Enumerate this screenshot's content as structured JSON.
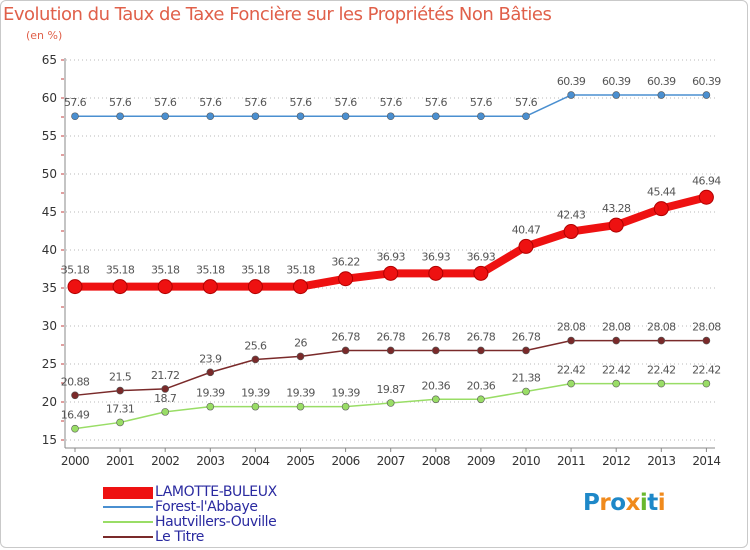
{
  "header": {
    "title": "Evolution du Taux de Taxe Foncière sur les Propriétés Non Bâties",
    "unit": "(en %)"
  },
  "chart_data": {
    "type": "line",
    "title": "Evolution du Taux de Taxe Foncière sur les Propriétés Non Bâties",
    "ylabel": "(en %)",
    "xlabel": "",
    "x": [
      "2000",
      "2001",
      "2002",
      "2003",
      "2004",
      "2005",
      "2006",
      "2007",
      "2008",
      "2009",
      "2010",
      "2011",
      "2012",
      "2013",
      "2014"
    ],
    "ylim": [
      15,
      65
    ],
    "yticks": [
      15,
      20,
      25,
      30,
      35,
      40,
      45,
      50,
      55,
      60,
      65
    ],
    "grid": true,
    "legend_position": "bottom-left",
    "series": [
      {
        "name": "Forest-l'Abbaye",
        "color": "#4a8fd0",
        "values": [
          57.6,
          57.6,
          57.6,
          57.6,
          57.6,
          57.6,
          57.6,
          57.6,
          57.6,
          57.6,
          57.6,
          60.39,
          60.39,
          60.39,
          60.39
        ],
        "labels": [
          "57.6",
          "57.6",
          "57.6",
          "57.6",
          "57.6",
          "57.6",
          "57.6",
          "57.6",
          "57.6",
          "57.6",
          "57.6",
          "60.39",
          "60.39",
          "60.39",
          "60.39"
        ]
      },
      {
        "name": "LAMOTTE-BULEUX",
        "color": "#ee1111",
        "values": [
          35.18,
          35.18,
          35.18,
          35.18,
          35.18,
          35.18,
          36.22,
          36.93,
          36.93,
          36.93,
          40.47,
          42.43,
          43.28,
          45.44,
          46.94
        ],
        "labels": [
          "35.18",
          "35.18",
          "35.18",
          "35.18",
          "35.18",
          "35.18",
          "36.22",
          "36.93",
          "36.93",
          "36.93",
          "40.47",
          "42.43",
          "43.28",
          "45.44",
          "46.94"
        ]
      },
      {
        "name": "Le Titre",
        "color": "#7a2a2a",
        "values": [
          20.88,
          21.5,
          21.72,
          23.9,
          25.6,
          26,
          26.78,
          26.78,
          26.78,
          26.78,
          26.78,
          28.08,
          28.08,
          28.08,
          28.08
        ],
        "labels": [
          "20.88",
          "21.5",
          "21.72",
          "23.9",
          "25.6",
          "26",
          "26.78",
          "26.78",
          "26.78",
          "26.78",
          "26.78",
          "28.08",
          "28.08",
          "28.08",
          "28.08"
        ]
      },
      {
        "name": "Hautvillers-Ouville",
        "color": "#99dd66",
        "values": [
          16.49,
          17.31,
          18.7,
          19.39,
          19.39,
          19.39,
          19.39,
          19.87,
          20.36,
          20.36,
          21.38,
          22.42,
          22.42,
          22.42,
          22.42
        ],
        "labels": [
          "16.49",
          "17.31",
          "18.7",
          "19.39",
          "19.39",
          "19.39",
          "19.39",
          "19.87",
          "20.36",
          "20.36",
          "21.38",
          "22.42",
          "22.42",
          "22.42",
          "22.42"
        ]
      }
    ]
  },
  "legend": {
    "items": [
      {
        "label": "LAMOTTE-BULEUX",
        "color": "#ee1111"
      },
      {
        "label": "Forest-l'Abbaye",
        "color": "#4a8fd0"
      },
      {
        "label": "Hautvillers-Ouville",
        "color": "#99dd66"
      },
      {
        "label": "Le Titre",
        "color": "#7a2a2a"
      }
    ]
  },
  "logo": {
    "text": "Proxiti",
    "letters": [
      "P",
      "r",
      "o",
      "x",
      "i",
      "t",
      "i"
    ],
    "colors": [
      "#1e88c8",
      "#f08a1c",
      "#1e88c8",
      "#f08a1c",
      "#6ab82e",
      "#1e88c8",
      "#f08a1c"
    ]
  }
}
